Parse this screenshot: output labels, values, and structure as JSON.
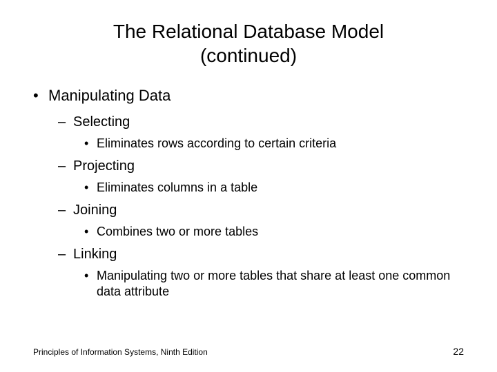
{
  "slide": {
    "title_line1": "The Relational Database Model",
    "title_line2": "(continued)",
    "background_color": "#ffffff",
    "text_color": "#000000",
    "title_fontsize": 28,
    "level1_fontsize": 22,
    "level2_fontsize": 20,
    "level3_fontsize": 18,
    "footer_fontsize": 12
  },
  "content": {
    "l1": "Manipulating Data",
    "items": [
      {
        "label": "Selecting",
        "detail": "Eliminates rows according to certain criteria"
      },
      {
        "label": "Projecting",
        "detail": "Eliminates columns in a table"
      },
      {
        "label": "Joining",
        "detail": "Combines two or more tables"
      },
      {
        "label": "Linking",
        "detail": "Manipulating two or more tables that share at least one common data attribute"
      }
    ]
  },
  "footer": {
    "left": "Principles of Information Systems, Ninth Edition",
    "page_number": "22"
  }
}
